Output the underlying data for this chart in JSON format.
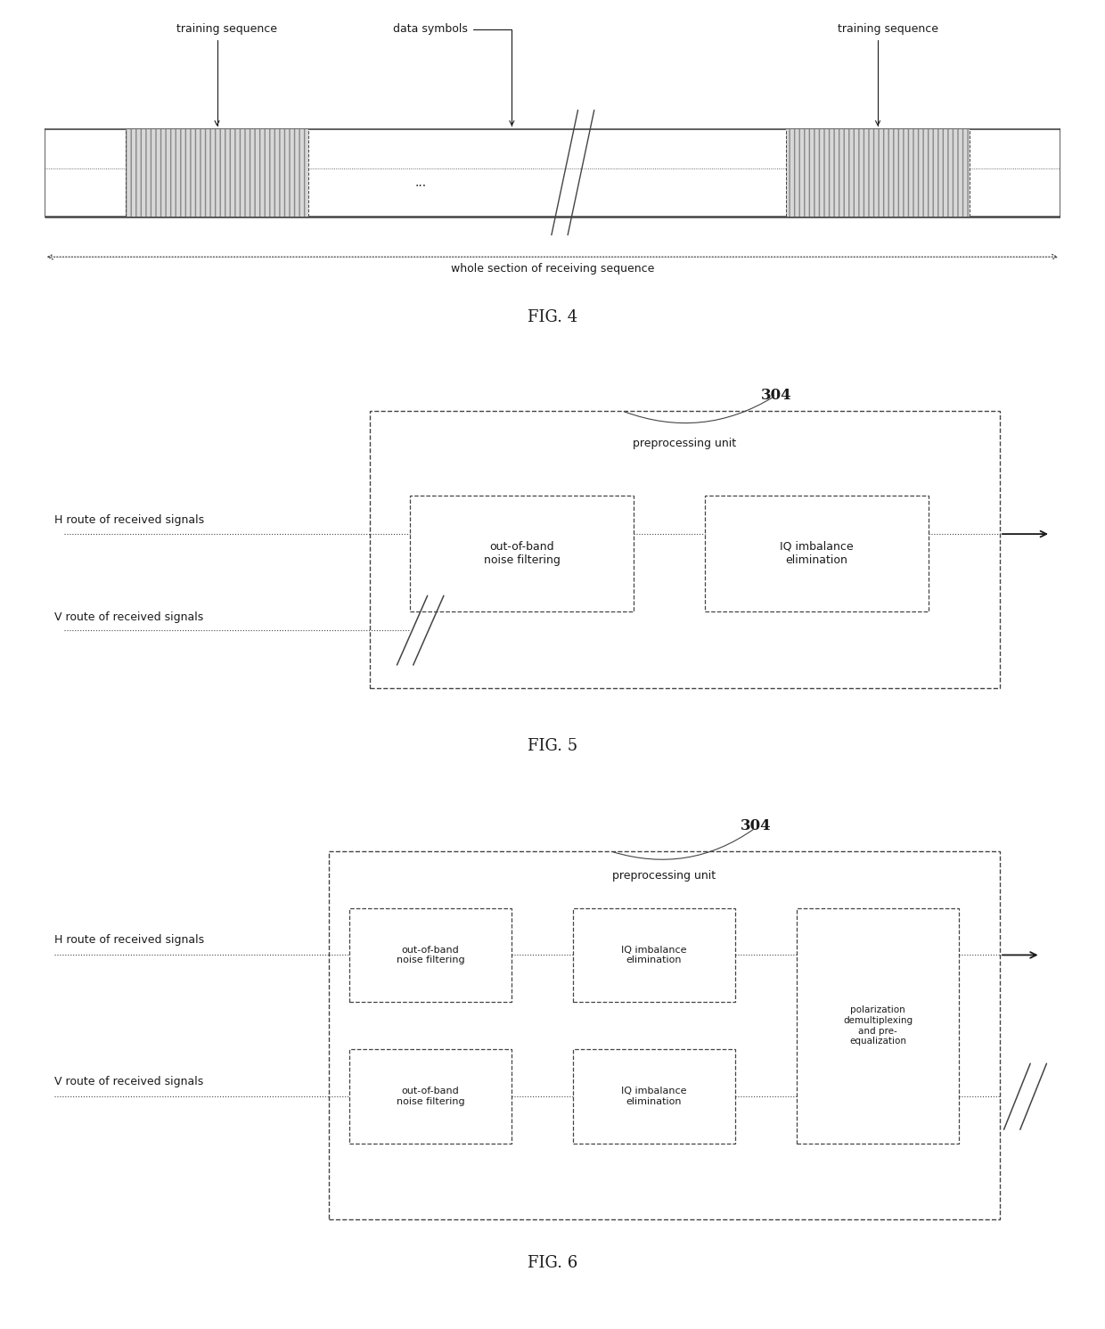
{
  "bg_color": "#ffffff",
  "text_color": "#1a1a1a",
  "line_color": "#444444",
  "font_size": 9,
  "font_size_sm": 8,
  "font_size_title": 13,
  "font_bold": 11,
  "fig4": {
    "title": "FIG. 4",
    "label_training1": "training sequence",
    "label_training2": "training sequence",
    "label_data": "data symbols",
    "label_whole": "whole section of receiving sequence"
  },
  "fig5": {
    "title": "FIG. 5",
    "label_304": "304",
    "label_preproc": "preprocessing unit",
    "label_H": "H route of received signals",
    "label_V": "V route of received signals",
    "label_outofband": "out-of-band\nnoise filtering",
    "label_IQ": "IQ imbalance\nelimination"
  },
  "fig6": {
    "title": "FIG. 6",
    "label_304": "304",
    "label_preproc": "preprocessing unit",
    "label_H": "H route of received signals",
    "label_V": "V route of received signals",
    "label_outofband": "out-of-band\nnoise filtering",
    "label_IQ": "IQ imbalance\nelimination",
    "label_pol": "polarization\ndemultiplexing\nand pre-\nequalization"
  }
}
